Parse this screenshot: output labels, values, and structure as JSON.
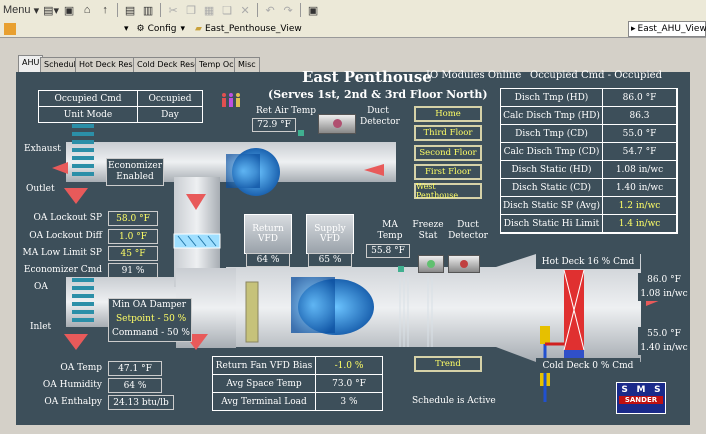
{
  "toolbar": {
    "menu_label": "Menu",
    "config_label": "Config",
    "crumb_label": "East_Penthouse_View",
    "view_select": "East_AHU_View"
  },
  "tabs": [
    "AHU",
    "Schedule",
    "Hot Deck Reset",
    "Cold Deck Reset",
    "Temp Occ",
    "Misc"
  ],
  "header": {
    "title": "East Penthouse",
    "io_status": "IO Modules Online",
    "occupied_cmd": "Occupied Cmd - Occupied",
    "serves": "(Serves 1st, 2nd & 3rd Floor North)"
  },
  "mode_table": [
    {
      "label": "Occupied Cmd",
      "value": "Occupied"
    },
    {
      "label": "Unit Mode",
      "value": "Day"
    }
  ],
  "nav_buttons": [
    "Home",
    "Third Floor",
    "Second Floor",
    "First Floor",
    "West Penthouse"
  ],
  "disch_table": [
    {
      "label": "Disch Tmp (HD)",
      "value": "86.0 °F"
    },
    {
      "label": "Calc Disch Tmp (HD)",
      "value": "86.3"
    },
    {
      "label": "Disch Tmp (CD)",
      "value": "55.0 °F"
    },
    {
      "label": "Calc Disch Tmp (CD)",
      "value": "54.7 °F"
    },
    {
      "label": "Disch Static (HD)",
      "value": "1.08 in/wc"
    },
    {
      "label": "Disch Static (CD)",
      "value": "1.40 in/wc"
    },
    {
      "label": "Disch Static SP (Avg)",
      "value": "1.2 in/wc"
    },
    {
      "label": "Disch Static Hi Limit",
      "value": "1.4 in/wc"
    }
  ],
  "exhaust": {
    "label": "Exhaust",
    "outlet": "Outlet"
  },
  "oa": {
    "label": "OA",
    "inlet": "Inlet"
  },
  "economizer": "Economizer Enabled",
  "ret_air": {
    "label": "Ret Air Temp",
    "value": "72.9 °F"
  },
  "duct_detector_label": "Duct Detector",
  "oa_params": [
    {
      "label": "OA Lockout SP",
      "value": "58.0 °F"
    },
    {
      "label": "OA Lockout Diff",
      "value": "1.0 °F"
    },
    {
      "label": "MA Low Limit SP",
      "value": "45 °F"
    },
    {
      "label": "Economizer Cmd",
      "value": "91 %"
    }
  ],
  "return_vfd": {
    "label": "Return VFD",
    "value": "64 %"
  },
  "supply_vfd": {
    "label": "Supply VFD",
    "value": "65 %"
  },
  "ma_temp": {
    "label": "MA Temp",
    "value": "55.8 °F"
  },
  "freeze_stat": "Freeze Stat",
  "duct_detector2": "Duct Detector",
  "hot_deck": {
    "label": "Hot Deck 16 % Cmd",
    "temp": "86.0 °F",
    "static": "1.08 in/wc"
  },
  "cold_deck": {
    "label": "Cold Deck 0 % Cmd",
    "temp": "55.0 °F",
    "static": "1.40 in/wc"
  },
  "oa_damper": {
    "title": "Min OA Damper",
    "setpoint": "Setpoint - 50 %",
    "command": "Command - 50 %"
  },
  "oa_readings": [
    {
      "label": "OA Temp",
      "value": "47.1 °F"
    },
    {
      "label": "OA Humidity",
      "value": "64 %"
    },
    {
      "label": "OA Enthalpy",
      "value": "24.13 btu/lb"
    }
  ],
  "bottom_table": [
    {
      "label": "Return Fan VFD Bias",
      "value": "-1.0 %"
    },
    {
      "label": "Avg Space Temp",
      "value": "73.0 °F"
    },
    {
      "label": "Avg Terminal Load",
      "value": "3 %"
    }
  ],
  "trend_button": "Trend",
  "schedule_status": "Schedule is Active",
  "logo_text": "SMS SANDER"
}
